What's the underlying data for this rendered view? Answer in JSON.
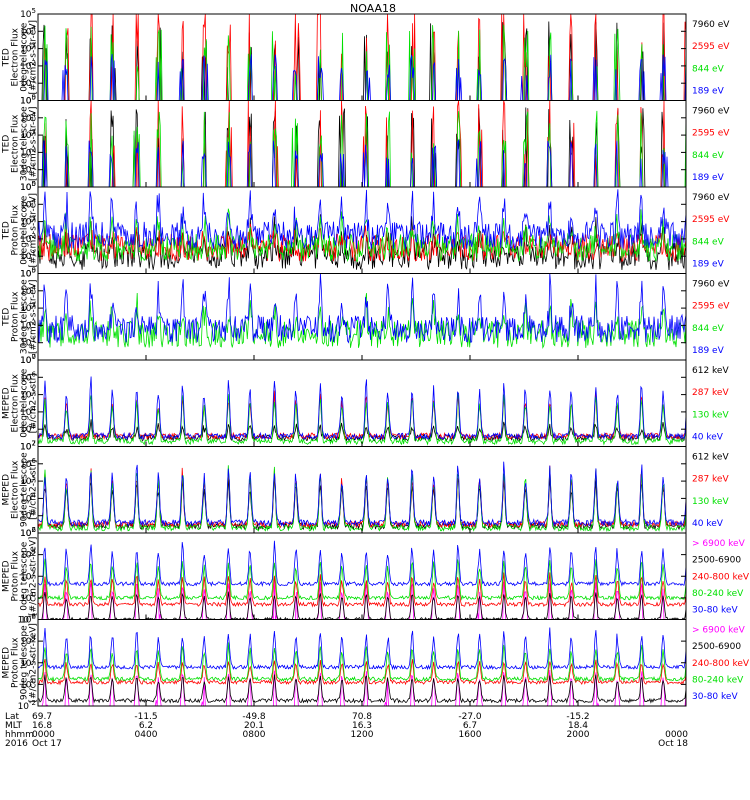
{
  "title": "NOAA18",
  "colors": {
    "black": "#000000",
    "red": "#ff0000",
    "green": "#00e000",
    "blue": "#0000ff",
    "magenta": "#ff00ff"
  },
  "chart_data": [
    {
      "type": "line",
      "ylabel": [
        "TED",
        "Electron Flux",
        "0deg telescope",
        "[#/cm2-s-str-eV]"
      ],
      "log_ylim": [
        0,
        5
      ],
      "yticks": [
        {
          "e": "0"
        },
        {
          "e": "1"
        },
        {
          "e": "2"
        },
        {
          "e": "3"
        },
        {
          "e": "4"
        },
        {
          "e": "5"
        }
      ],
      "legend": [
        {
          "label": "7960 eV",
          "color": "#000000"
        },
        {
          "label": "2595 eV",
          "color": "#ff0000"
        },
        {
          "label": "844 eV",
          "color": "#00e000"
        },
        {
          "label": "189 eV",
          "color": "#0000ff"
        }
      ],
      "profile": {
        "kind": "ted_e",
        "base": [
          -1,
          0.8
        ],
        "peaks": [
          [
            3.2,
            2.0
          ],
          [
            4.0,
            3.0
          ],
          [
            3.0,
            2.0
          ],
          [
            2.0,
            1.0
          ]
        ]
      }
    },
    {
      "type": "line",
      "ylabel": [
        "TED",
        "Electron Flux",
        "30deg telescope",
        "[#/cm2-s-str-eV]"
      ],
      "log_ylim": [
        0,
        5
      ],
      "yticks": [
        {
          "e": "0"
        },
        {
          "e": "1"
        },
        {
          "e": "2"
        },
        {
          "e": "3"
        },
        {
          "e": "4"
        },
        {
          "e": "5"
        }
      ],
      "legend": [
        {
          "label": "7960 eV",
          "color": "#000000"
        },
        {
          "label": "2595 eV",
          "color": "#ff0000"
        },
        {
          "label": "844 eV",
          "color": "#00e000"
        },
        {
          "label": "189 eV",
          "color": "#0000ff"
        }
      ],
      "profile": {
        "kind": "ted_e",
        "base": [
          -1,
          0.8
        ],
        "peaks": [
          [
            3.2,
            2.0
          ],
          [
            3.8,
            3.0
          ],
          [
            3.0,
            2.0
          ],
          [
            2.0,
            1.0
          ]
        ]
      }
    },
    {
      "type": "line",
      "ylabel": [
        "TED",
        "Proton Flux",
        "0deg telescope",
        "[#/cm2-s-str-eV]"
      ],
      "log_ylim": [
        0,
        5
      ],
      "yticks": [
        {
          "e": "0"
        },
        {
          "e": "1"
        },
        {
          "e": "2"
        },
        {
          "e": "3"
        },
        {
          "e": "4"
        },
        {
          "e": "5"
        }
      ],
      "legend": [
        {
          "label": "7960 eV",
          "color": "#000000"
        },
        {
          "label": "2595 eV",
          "color": "#ff0000"
        },
        {
          "label": "844 eV",
          "color": "#00e000"
        },
        {
          "label": "189 eV",
          "color": "#0000ff"
        }
      ],
      "profile": {
        "kind": "ted_p",
        "base": [
          1.0,
          1.5,
          1.5,
          2.2
        ],
        "peaks": [
          [
            2.5,
            1.0
          ],
          [
            2.0,
            0.5
          ],
          [
            3.0,
            0.8
          ],
          [
            4.2,
            1.8
          ]
        ]
      }
    },
    {
      "type": "line",
      "ylabel": [
        "TED",
        "Proton Flux",
        "30deg telescope",
        "[#/cm2-s-str-eV]"
      ],
      "log_ylim": [
        0,
        5
      ],
      "yticks": [
        {
          "e": "0"
        },
        {
          "e": "1"
        },
        {
          "e": "2"
        },
        {
          "e": "3"
        },
        {
          "e": "4"
        },
        {
          "e": "5"
        }
      ],
      "legend": [
        {
          "label": "7960 eV",
          "color": "#000000"
        },
        {
          "label": "2595 eV",
          "color": "#ff0000"
        },
        {
          "label": "844 eV",
          "color": "#00e000"
        },
        {
          "label": "189 eV",
          "color": "#0000ff"
        }
      ],
      "profile": {
        "kind": "ted_p2",
        "base": [
          -1,
          -1,
          1.5,
          1.8
        ],
        "peaks": [
          [
            0,
            0
          ],
          [
            0,
            0
          ],
          [
            3.0,
            0.7
          ],
          [
            4.0,
            1.8
          ]
        ]
      }
    },
    {
      "type": "line",
      "ylabel": [
        "MEPED",
        "Electron Flux",
        "0deg telescope",
        "[#/cm2-s-str]"
      ],
      "log_ylim": [
        2,
        7
      ],
      "yticks": [
        {
          "e": "2"
        },
        {
          "e": "3"
        },
        {
          "e": "4"
        },
        {
          "e": "5"
        },
        {
          "e": "6"
        },
        {
          "e": "7"
        }
      ],
      "legend": [
        {
          "label": "612 keV",
          "color": "#000000"
        },
        {
          "label": "287 keV",
          "color": "#ff0000"
        },
        {
          "label": "130 keV",
          "color": "#00e000"
        },
        {
          "label": "40 keV",
          "color": "#0000ff"
        }
      ],
      "profile": {
        "kind": "mep_e",
        "base": [
          2.5,
          2.6,
          2.3,
          2.6
        ],
        "peaks": [
          [
            3.2,
            0.5
          ],
          [
            4.8,
            0.8
          ],
          [
            4.8,
            0.8
          ],
          [
            5.6,
            0.9
          ]
        ]
      }
    },
    {
      "type": "line",
      "ylabel": [
        "MEPED",
        "Electron Flux",
        "90deg telescope",
        "[#/cm2-s-str]"
      ],
      "log_ylim": [
        2,
        7
      ],
      "yticks": [
        {
          "e": "2"
        },
        {
          "e": "3"
        },
        {
          "e": "4"
        },
        {
          "e": "5"
        },
        {
          "e": "6"
        },
        {
          "e": "7"
        }
      ],
      "legend": [
        {
          "label": "612 keV",
          "color": "#000000"
        },
        {
          "label": "287 keV",
          "color": "#ff0000"
        },
        {
          "label": "130 keV",
          "color": "#00e000"
        },
        {
          "label": "40 keV",
          "color": "#0000ff"
        }
      ],
      "profile": {
        "kind": "mep_e",
        "base": [
          2.4,
          2.5,
          2.3,
          2.6
        ],
        "peaks": [
          [
            5.0,
            0.6
          ],
          [
            5.5,
            0.8
          ],
          [
            5.5,
            0.8
          ],
          [
            5.8,
            0.9
          ]
        ]
      }
    },
    {
      "type": "line",
      "ylabel": [
        "MEPED",
        "Proton Flux",
        "0deg telescope",
        "[#/cm2-s-str-keV]"
      ],
      "log_ylim": [
        -2,
        6
      ],
      "yticks": [
        {
          "e": "-2"
        },
        {
          "e": "0"
        },
        {
          "e": "2"
        },
        {
          "e": "4"
        },
        {
          "e": "6"
        }
      ],
      "legend": [
        {
          "label": "> 6900 keV",
          "color": "#ff00ff"
        },
        {
          "label": "2500-6900",
          "color": "#000000"
        },
        {
          "label": "240-800 keV",
          "color": "#ff0000"
        },
        {
          "label": "80-240 keV",
          "color": "#00e000"
        },
        {
          "label": "30-80 keV",
          "color": "#0000ff"
        }
      ],
      "profile": {
        "kind": "mep_p",
        "base": [
          -2.5,
          -2.0,
          -0.6,
          0.0,
          1.3
        ],
        "peaks": [
          [
            1.4,
            0.3
          ],
          [
            0.5,
            0.4
          ],
          [
            2.0,
            0.6
          ],
          [
            3.5,
            0.7
          ],
          [
            4.8,
            1.0
          ]
        ]
      }
    },
    {
      "type": "line",
      "ylabel": [
        "MEPED",
        "Proton Flux",
        "90deg telescope",
        "[#/cm2-s-str-keV]"
      ],
      "log_ylim": [
        -2,
        6
      ],
      "yticks": [
        {
          "e": "-2"
        },
        {
          "e": "0"
        },
        {
          "e": "2"
        },
        {
          "e": "4"
        },
        {
          "e": "6"
        }
      ],
      "legend": [
        {
          "label": "> 6900 keV",
          "color": "#ff00ff"
        },
        {
          "label": "2500-6900",
          "color": "#000000"
        },
        {
          "label": "240-800 keV",
          "color": "#ff0000"
        },
        {
          "label": "80-240 keV",
          "color": "#00e000"
        },
        {
          "label": "30-80 keV",
          "color": "#0000ff"
        }
      ],
      "profile": {
        "kind": "mep_p",
        "base": [
          -2.5,
          -1.5,
          0.2,
          0.5,
          1.6
        ],
        "peaks": [
          [
            1.2,
            0.3
          ],
          [
            0.8,
            0.4
          ],
          [
            2.2,
            0.6
          ],
          [
            3.5,
            0.7
          ],
          [
            4.8,
            1.0
          ]
        ]
      }
    }
  ],
  "x_axis": {
    "row_labels": [
      "Lat",
      "MLT",
      "hhmm",
      "2016"
    ],
    "ticks": [
      {
        "t": 0,
        "lat": "69.7",
        "mlt": "16.8",
        "hhmm": "0000",
        "date": "Oct 17"
      },
      {
        "t": 4,
        "lat": "-11.5",
        "mlt": "6.2",
        "hhmm": "0400",
        "date": ""
      },
      {
        "t": 8,
        "lat": "-49.8",
        "mlt": "20.1",
        "hhmm": "0800",
        "date": ""
      },
      {
        "t": 12,
        "lat": "70.8",
        "mlt": "16.3",
        "hhmm": "1200",
        "date": ""
      },
      {
        "t": 16,
        "lat": "-27.0",
        "mlt": "6.7",
        "hhmm": "1600",
        "date": ""
      },
      {
        "t": 20,
        "lat": "-15.2",
        "mlt": "18.4",
        "hhmm": "2000",
        "date": ""
      },
      {
        "t": 24,
        "lat": "",
        "mlt": "",
        "hhmm": "0000",
        "date": "Oct 18"
      }
    ],
    "xlim_hours": [
      0,
      24
    ],
    "orbit_period_hours": 1.7
  }
}
